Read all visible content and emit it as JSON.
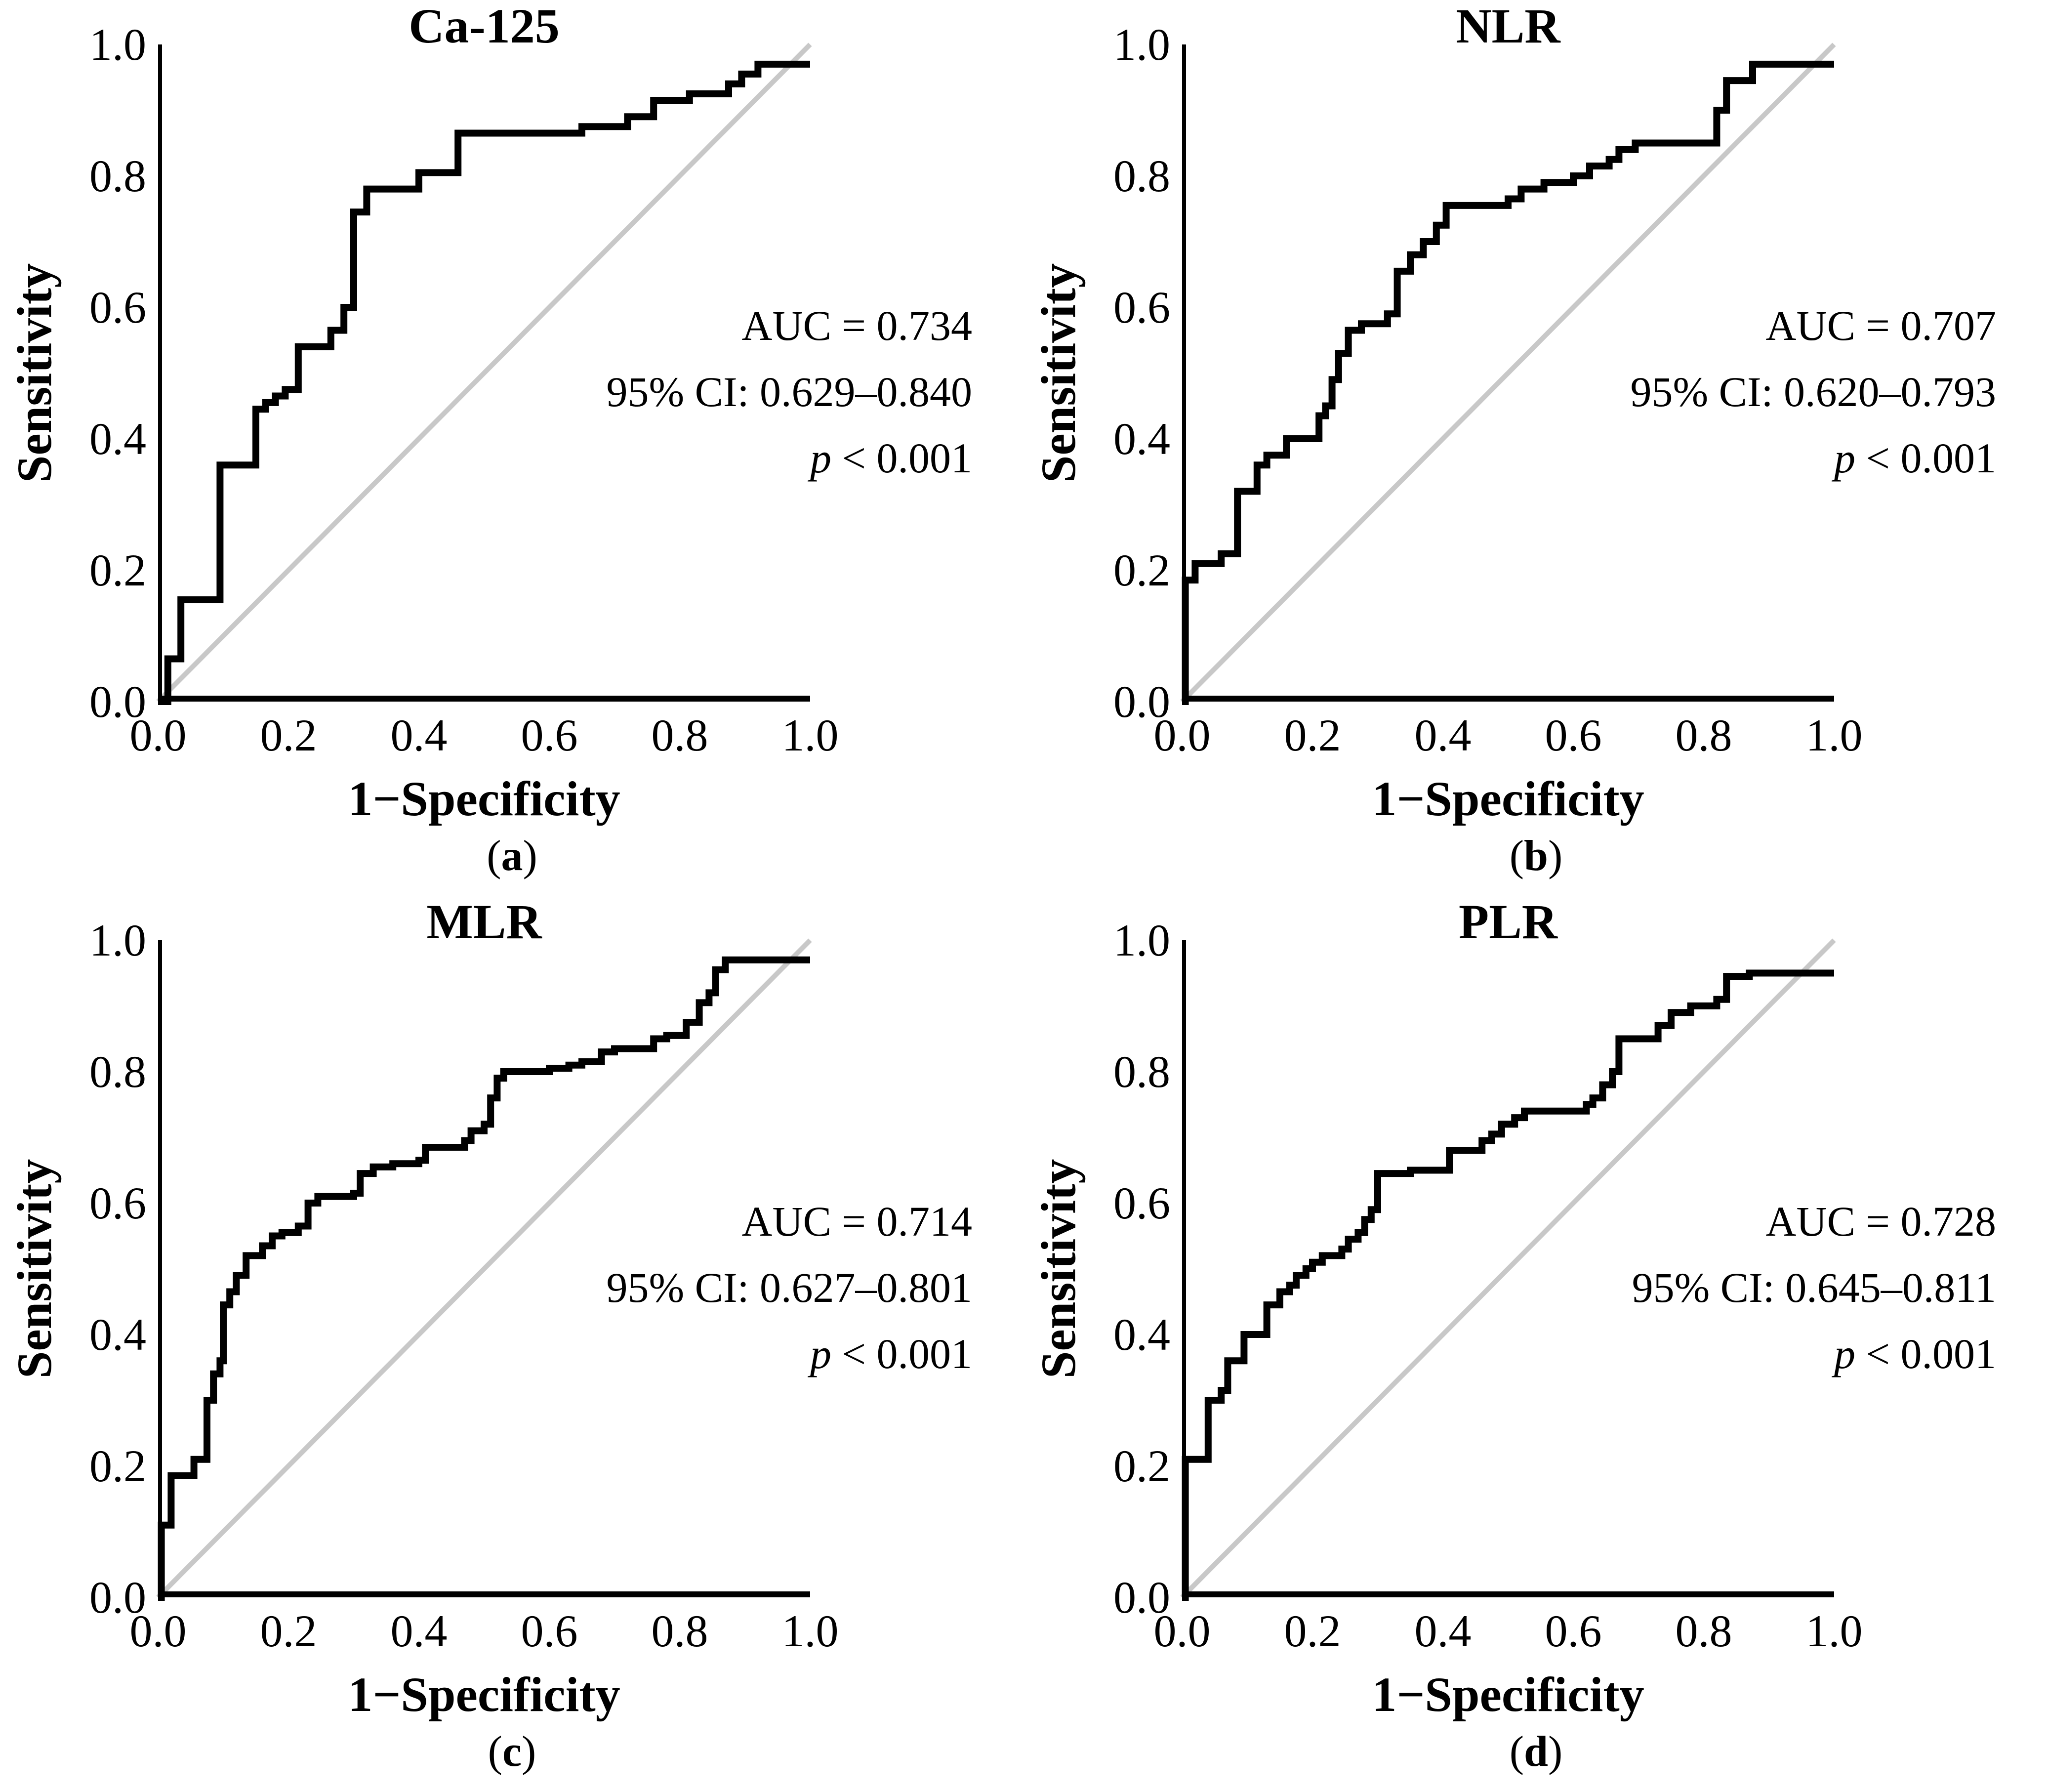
{
  "figure": {
    "background": "#ffffff",
    "x_ticks": [
      "0.0",
      "0.2",
      "0.4",
      "0.6",
      "0.8",
      "1.0"
    ],
    "y_ticks": [
      "1.0",
      "0.8",
      "0.6",
      "0.4",
      "0.2",
      "0.0"
    ],
    "colors": {
      "curve": "#000000",
      "diagonal_reference": "#c8c8c8",
      "axis": "#000000",
      "text": "#000000"
    }
  },
  "chart_data": [
    {
      "type": "line",
      "roc_style": "step",
      "title": "Ca-125",
      "caption": {
        "open": "(",
        "letter": "a",
        "close": ")"
      },
      "xlabel": "1−Specificity",
      "ylabel": "Sensitivity",
      "xlim": [
        0,
        1
      ],
      "ylim": [
        0,
        1
      ],
      "grid": false,
      "diagonal_reference": true,
      "legend": "none",
      "annotation": {
        "auc": "AUC = 0.734",
        "ci": "95% CI: 0.629–0.840",
        "p_symbol": "p",
        "p_rest": " < 0.001"
      },
      "auc": 0.734,
      "ci_low": 0.629,
      "ci_high": 0.84,
      "p_value": "< 0.001",
      "roc_points": [
        [
          0,
          0
        ],
        [
          0.015,
          0
        ],
        [
          0.015,
          0.065
        ],
        [
          0.035,
          0.065
        ],
        [
          0.035,
          0.155
        ],
        [
          0.095,
          0.155
        ],
        [
          0.095,
          0.36
        ],
        [
          0.15,
          0.36
        ],
        [
          0.15,
          0.445
        ],
        [
          0.165,
          0.445
        ],
        [
          0.165,
          0.455
        ],
        [
          0.18,
          0.455
        ],
        [
          0.18,
          0.465
        ],
        [
          0.195,
          0.465
        ],
        [
          0.195,
          0.475
        ],
        [
          0.215,
          0.475
        ],
        [
          0.215,
          0.54
        ],
        [
          0.265,
          0.54
        ],
        [
          0.265,
          0.565
        ],
        [
          0.285,
          0.565
        ],
        [
          0.285,
          0.6
        ],
        [
          0.3,
          0.6
        ],
        [
          0.3,
          0.745
        ],
        [
          0.32,
          0.745
        ],
        [
          0.32,
          0.78
        ],
        [
          0.4,
          0.78
        ],
        [
          0.4,
          0.805
        ],
        [
          0.46,
          0.805
        ],
        [
          0.46,
          0.865
        ],
        [
          0.65,
          0.865
        ],
        [
          0.65,
          0.875
        ],
        [
          0.72,
          0.875
        ],
        [
          0.72,
          0.89
        ],
        [
          0.76,
          0.89
        ],
        [
          0.76,
          0.915
        ],
        [
          0.815,
          0.915
        ],
        [
          0.815,
          0.925
        ],
        [
          0.875,
          0.925
        ],
        [
          0.875,
          0.94
        ],
        [
          0.895,
          0.94
        ],
        [
          0.895,
          0.955
        ],
        [
          0.92,
          0.955
        ],
        [
          0.92,
          0.97
        ],
        [
          1,
          0.97
        ]
      ]
    },
    {
      "type": "line",
      "roc_style": "step",
      "title": "NLR",
      "caption": {
        "open": "(",
        "letter": "b",
        "close": ")"
      },
      "xlabel": "1−Specificity",
      "ylabel": "Sensitivity",
      "xlim": [
        0,
        1
      ],
      "ylim": [
        0,
        1
      ],
      "grid": false,
      "diagonal_reference": true,
      "legend": "none",
      "annotation": {
        "auc": "AUC = 0.707",
        "ci": "95% CI: 0.620–0.793",
        "p_symbol": "p",
        "p_rest": " < 0.001"
      },
      "auc": 0.707,
      "ci_low": 0.62,
      "ci_high": 0.793,
      "p_value": "< 0.001",
      "roc_points": [
        [
          0,
          0
        ],
        [
          0.005,
          0
        ],
        [
          0.005,
          0.185
        ],
        [
          0.02,
          0.185
        ],
        [
          0.02,
          0.21
        ],
        [
          0.06,
          0.21
        ],
        [
          0.06,
          0.225
        ],
        [
          0.085,
          0.225
        ],
        [
          0.085,
          0.32
        ],
        [
          0.115,
          0.32
        ],
        [
          0.115,
          0.36
        ],
        [
          0.13,
          0.36
        ],
        [
          0.13,
          0.375
        ],
        [
          0.16,
          0.375
        ],
        [
          0.16,
          0.4
        ],
        [
          0.21,
          0.4
        ],
        [
          0.21,
          0.435
        ],
        [
          0.22,
          0.435
        ],
        [
          0.22,
          0.45
        ],
        [
          0.23,
          0.45
        ],
        [
          0.23,
          0.49
        ],
        [
          0.24,
          0.49
        ],
        [
          0.24,
          0.53
        ],
        [
          0.255,
          0.53
        ],
        [
          0.255,
          0.565
        ],
        [
          0.275,
          0.565
        ],
        [
          0.275,
          0.575
        ],
        [
          0.315,
          0.575
        ],
        [
          0.315,
          0.59
        ],
        [
          0.33,
          0.59
        ],
        [
          0.33,
          0.655
        ],
        [
          0.35,
          0.655
        ],
        [
          0.35,
          0.68
        ],
        [
          0.37,
          0.68
        ],
        [
          0.37,
          0.7
        ],
        [
          0.39,
          0.7
        ],
        [
          0.39,
          0.725
        ],
        [
          0.405,
          0.725
        ],
        [
          0.405,
          0.755
        ],
        [
          0.5,
          0.755
        ],
        [
          0.5,
          0.765
        ],
        [
          0.52,
          0.765
        ],
        [
          0.52,
          0.78
        ],
        [
          0.555,
          0.78
        ],
        [
          0.555,
          0.79
        ],
        [
          0.6,
          0.79
        ],
        [
          0.6,
          0.8
        ],
        [
          0.625,
          0.8
        ],
        [
          0.625,
          0.815
        ],
        [
          0.655,
          0.815
        ],
        [
          0.655,
          0.825
        ],
        [
          0.67,
          0.825
        ],
        [
          0.67,
          0.84
        ],
        [
          0.695,
          0.84
        ],
        [
          0.695,
          0.85
        ],
        [
          0.82,
          0.85
        ],
        [
          0.82,
          0.9
        ],
        [
          0.835,
          0.9
        ],
        [
          0.835,
          0.945
        ],
        [
          0.875,
          0.945
        ],
        [
          0.875,
          0.97
        ],
        [
          1,
          0.97
        ]
      ]
    },
    {
      "type": "line",
      "roc_style": "step",
      "title": "MLR",
      "caption": {
        "open": "(",
        "letter": "c",
        "close": ")"
      },
      "xlabel": "1−Specificity",
      "ylabel": "Sensitivity",
      "xlim": [
        0,
        1
      ],
      "ylim": [
        0,
        1
      ],
      "grid": false,
      "diagonal_reference": true,
      "legend": "none",
      "annotation": {
        "auc": "AUC = 0.714",
        "ci": "95% CI: 0.627–0.801",
        "p_symbol": "p",
        "p_rest": " < 0.001"
      },
      "auc": 0.714,
      "ci_low": 0.627,
      "ci_high": 0.801,
      "p_value": "< 0.001",
      "roc_points": [
        [
          0,
          0
        ],
        [
          0.005,
          0
        ],
        [
          0.005,
          0.11
        ],
        [
          0.02,
          0.11
        ],
        [
          0.02,
          0.185
        ],
        [
          0.055,
          0.185
        ],
        [
          0.055,
          0.21
        ],
        [
          0.075,
          0.21
        ],
        [
          0.075,
          0.3
        ],
        [
          0.085,
          0.3
        ],
        [
          0.085,
          0.34
        ],
        [
          0.095,
          0.34
        ],
        [
          0.095,
          0.36
        ],
        [
          0.1,
          0.36
        ],
        [
          0.1,
          0.445
        ],
        [
          0.11,
          0.445
        ],
        [
          0.11,
          0.465
        ],
        [
          0.12,
          0.465
        ],
        [
          0.12,
          0.49
        ],
        [
          0.135,
          0.49
        ],
        [
          0.135,
          0.52
        ],
        [
          0.16,
          0.52
        ],
        [
          0.16,
          0.535
        ],
        [
          0.175,
          0.535
        ],
        [
          0.175,
          0.55
        ],
        [
          0.19,
          0.55
        ],
        [
          0.19,
          0.555
        ],
        [
          0.215,
          0.555
        ],
        [
          0.215,
          0.565
        ],
        [
          0.23,
          0.565
        ],
        [
          0.23,
          0.6
        ],
        [
          0.245,
          0.6
        ],
        [
          0.245,
          0.61
        ],
        [
          0.3,
          0.61
        ],
        [
          0.3,
          0.615
        ],
        [
          0.31,
          0.615
        ],
        [
          0.31,
          0.645
        ],
        [
          0.33,
          0.645
        ],
        [
          0.33,
          0.655
        ],
        [
          0.36,
          0.655
        ],
        [
          0.36,
          0.66
        ],
        [
          0.4,
          0.66
        ],
        [
          0.4,
          0.665
        ],
        [
          0.41,
          0.665
        ],
        [
          0.41,
          0.685
        ],
        [
          0.47,
          0.685
        ],
        [
          0.47,
          0.695
        ],
        [
          0.48,
          0.695
        ],
        [
          0.48,
          0.71
        ],
        [
          0.5,
          0.71
        ],
        [
          0.5,
          0.72
        ],
        [
          0.51,
          0.72
        ],
        [
          0.51,
          0.76
        ],
        [
          0.52,
          0.76
        ],
        [
          0.52,
          0.79
        ],
        [
          0.53,
          0.79
        ],
        [
          0.53,
          0.8
        ],
        [
          0.6,
          0.8
        ],
        [
          0.6,
          0.805
        ],
        [
          0.63,
          0.805
        ],
        [
          0.63,
          0.81
        ],
        [
          0.65,
          0.81
        ],
        [
          0.65,
          0.815
        ],
        [
          0.68,
          0.815
        ],
        [
          0.68,
          0.83
        ],
        [
          0.7,
          0.83
        ],
        [
          0.7,
          0.835
        ],
        [
          0.76,
          0.835
        ],
        [
          0.76,
          0.85
        ],
        [
          0.78,
          0.85
        ],
        [
          0.78,
          0.855
        ],
        [
          0.81,
          0.855
        ],
        [
          0.81,
          0.875
        ],
        [
          0.83,
          0.875
        ],
        [
          0.83,
          0.905
        ],
        [
          0.845,
          0.905
        ],
        [
          0.845,
          0.92
        ],
        [
          0.855,
          0.92
        ],
        [
          0.855,
          0.955
        ],
        [
          0.87,
          0.955
        ],
        [
          0.87,
          0.97
        ],
        [
          1,
          0.97
        ]
      ]
    },
    {
      "type": "line",
      "roc_style": "step",
      "title": "PLR",
      "caption": {
        "open": "(",
        "letter": "d",
        "close": ")"
      },
      "xlabel": "1−Specificity",
      "ylabel": "Sensitivity",
      "xlim": [
        0,
        1
      ],
      "ylim": [
        0,
        1
      ],
      "grid": false,
      "diagonal_reference": true,
      "legend": "none",
      "annotation": {
        "auc": "AUC = 0.728",
        "ci": "95% CI: 0.645–0.811",
        "p_symbol": "p",
        "p_rest": " < 0.001"
      },
      "auc": 0.728,
      "ci_low": 0.645,
      "ci_high": 0.811,
      "p_value": "< 0.001",
      "roc_points": [
        [
          0,
          0
        ],
        [
          0.005,
          0
        ],
        [
          0.005,
          0.21
        ],
        [
          0.04,
          0.21
        ],
        [
          0.04,
          0.3
        ],
        [
          0.06,
          0.3
        ],
        [
          0.06,
          0.315
        ],
        [
          0.07,
          0.315
        ],
        [
          0.07,
          0.36
        ],
        [
          0.095,
          0.36
        ],
        [
          0.095,
          0.4
        ],
        [
          0.13,
          0.4
        ],
        [
          0.13,
          0.445
        ],
        [
          0.15,
          0.445
        ],
        [
          0.15,
          0.465
        ],
        [
          0.165,
          0.465
        ],
        [
          0.165,
          0.475
        ],
        [
          0.175,
          0.475
        ],
        [
          0.175,
          0.49
        ],
        [
          0.19,
          0.49
        ],
        [
          0.19,
          0.5
        ],
        [
          0.2,
          0.5
        ],
        [
          0.2,
          0.51
        ],
        [
          0.215,
          0.51
        ],
        [
          0.215,
          0.52
        ],
        [
          0.245,
          0.52
        ],
        [
          0.245,
          0.53
        ],
        [
          0.255,
          0.53
        ],
        [
          0.255,
          0.545
        ],
        [
          0.27,
          0.545
        ],
        [
          0.27,
          0.555
        ],
        [
          0.28,
          0.555
        ],
        [
          0.28,
          0.575
        ],
        [
          0.29,
          0.575
        ],
        [
          0.29,
          0.59
        ],
        [
          0.3,
          0.59
        ],
        [
          0.3,
          0.645
        ],
        [
          0.35,
          0.645
        ],
        [
          0.35,
          0.65
        ],
        [
          0.41,
          0.65
        ],
        [
          0.41,
          0.68
        ],
        [
          0.46,
          0.68
        ],
        [
          0.46,
          0.695
        ],
        [
          0.475,
          0.695
        ],
        [
          0.475,
          0.705
        ],
        [
          0.49,
          0.705
        ],
        [
          0.49,
          0.72
        ],
        [
          0.51,
          0.72
        ],
        [
          0.51,
          0.73
        ],
        [
          0.525,
          0.73
        ],
        [
          0.525,
          0.74
        ],
        [
          0.62,
          0.74
        ],
        [
          0.62,
          0.75
        ],
        [
          0.63,
          0.75
        ],
        [
          0.63,
          0.76
        ],
        [
          0.645,
          0.76
        ],
        [
          0.645,
          0.78
        ],
        [
          0.66,
          0.78
        ],
        [
          0.66,
          0.8
        ],
        [
          0.67,
          0.8
        ],
        [
          0.67,
          0.85
        ],
        [
          0.73,
          0.85
        ],
        [
          0.73,
          0.87
        ],
        [
          0.75,
          0.87
        ],
        [
          0.75,
          0.89
        ],
        [
          0.78,
          0.89
        ],
        [
          0.78,
          0.9
        ],
        [
          0.82,
          0.9
        ],
        [
          0.82,
          0.91
        ],
        [
          0.835,
          0.91
        ],
        [
          0.835,
          0.945
        ],
        [
          0.87,
          0.945
        ],
        [
          0.87,
          0.95
        ],
        [
          1,
          0.95
        ]
      ]
    }
  ]
}
